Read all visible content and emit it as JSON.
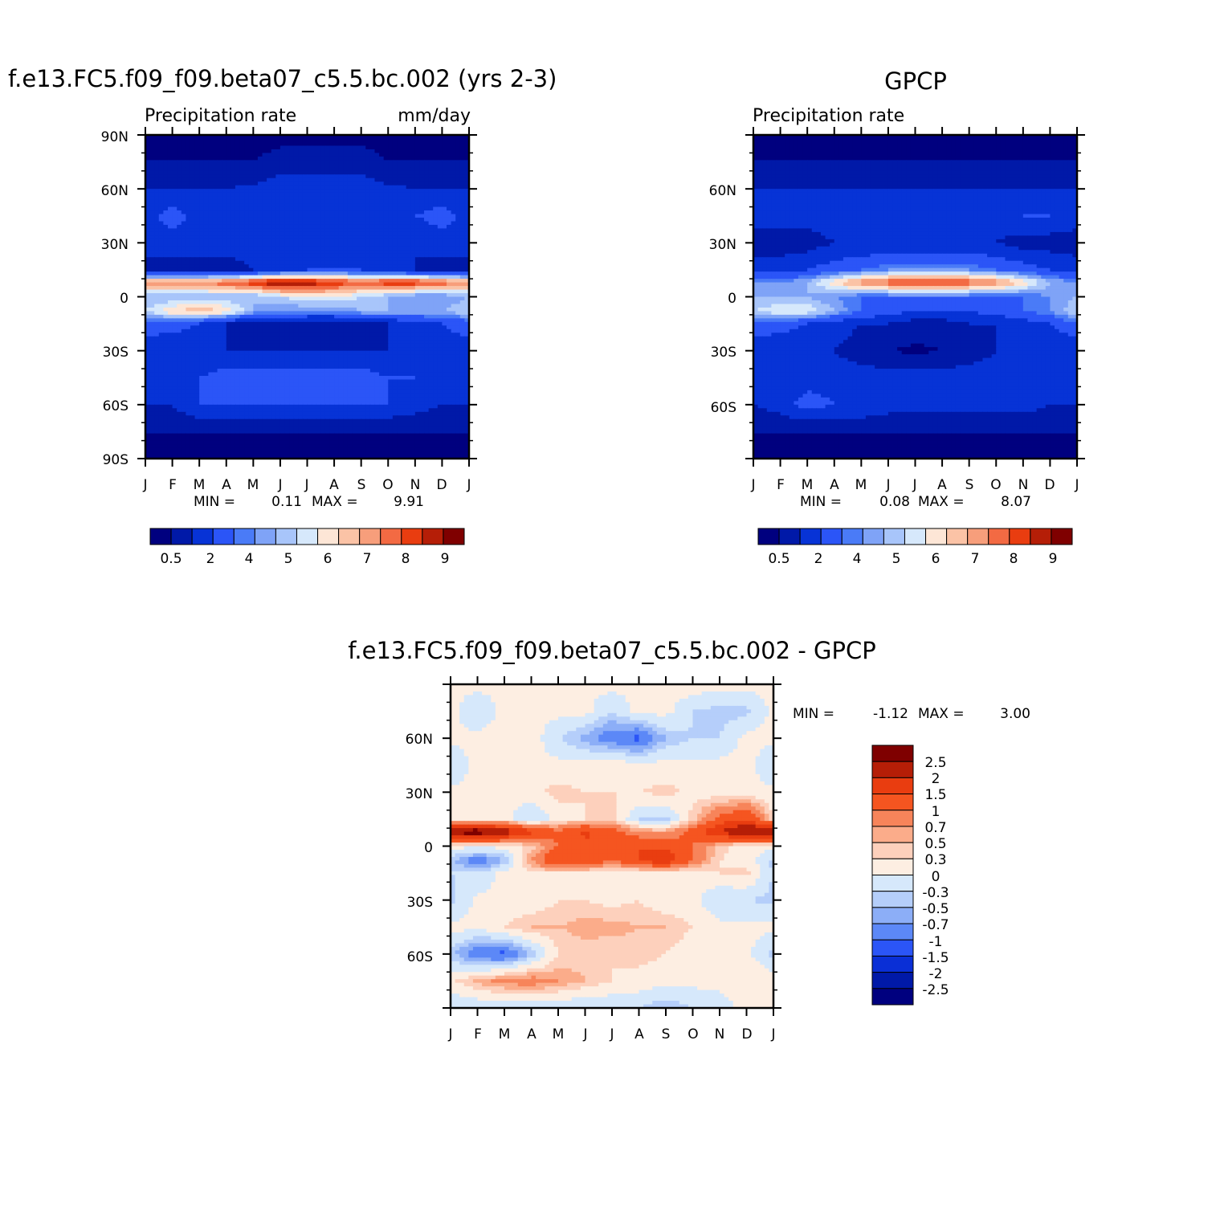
{
  "months": [
    "J",
    "F",
    "M",
    "A",
    "M",
    "J",
    "J",
    "A",
    "S",
    "O",
    "N",
    "D",
    "J"
  ],
  "panel_left": {
    "title": "f.e13.FC5.f09_f09.beta07_c5.5.bc.002 (yrs 2-3)",
    "left_string": "Precipitation rate",
    "right_string": "mm/day",
    "lat_labels": [
      "90N",
      "60N",
      "30N",
      "0",
      "30S",
      "60S",
      "90S"
    ],
    "min_label": "MIN =",
    "min_value": "0.11",
    "max_label": "MAX =",
    "max_value": "9.91",
    "colorbar_labels": [
      "0.5",
      "2",
      "4",
      "5",
      "6",
      "7",
      "8",
      "9"
    ]
  },
  "panel_right": {
    "title": "GPCP",
    "left_string": "Precipitation rate",
    "lat_labels": [
      "60N",
      "30N",
      "0",
      "30S",
      "60S"
    ],
    "min_label": "MIN =",
    "min_value": "0.08",
    "max_label": "MAX =",
    "max_value": "8.07",
    "colorbar_labels": [
      "0.5",
      "2",
      "4",
      "5",
      "6",
      "7",
      "8",
      "9"
    ]
  },
  "panel_diff": {
    "title": "f.e13.FC5.f09_f09.beta07_c5.5.bc.002 - GPCP",
    "lat_labels": [
      "60N",
      "30N",
      "0",
      "30S",
      "60S"
    ],
    "min_label": "MIN =",
    "min_value": "-1.12",
    "max_label": "MAX =",
    "max_value": "3.00",
    "colorbar_labels": [
      "2.5",
      "2",
      "1.5",
      "1",
      "0.7",
      "0.5",
      "0.3",
      "0",
      "-0.3",
      "-0.5",
      "-0.7",
      "-1",
      "-1.5",
      "-2",
      "-2.5"
    ]
  },
  "colors": {
    "precip_scale": [
      "#00007f",
      "#0019a8",
      "#0733d6",
      "#2b55f7",
      "#4a7bf7",
      "#7fa3f7",
      "#a8c5fa",
      "#d6e8fb",
      "#fde6d6",
      "#fbc3a6",
      "#f79e7b",
      "#f36a43",
      "#e93d10",
      "#b51e07",
      "#7f0000"
    ],
    "diff_scale": [
      "#7f0000",
      "#b51e07",
      "#e93d10",
      "#f55520",
      "#f7845a",
      "#fbac8a",
      "#fdd0bc",
      "#fdeee2",
      "#d6e8fb",
      "#b5cefa",
      "#8caef7",
      "#5c88f7",
      "#2b55f7",
      "#0a2fd6",
      "#0019a8",
      "#00007f"
    ]
  },
  "chart_data": [
    {
      "type": "heatmap",
      "title": "f.e13.FC5.f09_f09.beta07_c5.5.bc.002 (yrs 2-3)",
      "units": "mm/day",
      "x": [
        "J",
        "F",
        "M",
        "A",
        "M",
        "J",
        "J",
        "A",
        "S",
        "O",
        "N",
        "D",
        "J"
      ],
      "y": [
        90,
        75,
        60,
        45,
        30,
        15,
        8,
        0,
        -8,
        -15,
        -30,
        -45,
        -60,
        -75,
        -90
      ],
      "levels": [
        0.5,
        1,
        2,
        3,
        4,
        4.5,
        5,
        5.5,
        6,
        6.5,
        7,
        7.5,
        8,
        8.5,
        9,
        9.5
      ],
      "values": [
        [
          0.6,
          0.5,
          0.5,
          0.5,
          0.5,
          0.6,
          0.6,
          0.6,
          0.6,
          0.6,
          0.5,
          0.5,
          0.6
        ],
        [
          1.0,
          1.0,
          1.0,
          1.0,
          1.0,
          1.5,
          1.5,
          1.5,
          1.5,
          1.0,
          1.0,
          1.0,
          1.0
        ],
        [
          2.0,
          2.0,
          2.0,
          2.0,
          2.2,
          2.5,
          2.5,
          2.5,
          2.5,
          2.2,
          2.0,
          2.0,
          2.0
        ],
        [
          2.5,
          3.5,
          2.5,
          2.5,
          2.5,
          2.5,
          2.5,
          2.0,
          2.0,
          2.5,
          3.0,
          3.5,
          2.5
        ],
        [
          2.5,
          2.5,
          2.5,
          2.5,
          2.5,
          2.0,
          2.0,
          2.0,
          2.0,
          2.0,
          2.0,
          2.5,
          2.5
        ],
        [
          1.5,
          1.5,
          1.5,
          1.5,
          2.0,
          2.5,
          3.0,
          3.0,
          3.0,
          2.5,
          2.0,
          1.5,
          1.5
        ],
        [
          7.5,
          7.5,
          7.5,
          8.0,
          8.5,
          9.5,
          9.0,
          8.5,
          8.0,
          8.5,
          8.5,
          8.0,
          7.5
        ],
        [
          5.0,
          5.0,
          5.0,
          5.0,
          5.0,
          5.5,
          6.0,
          6.0,
          5.5,
          5.0,
          4.5,
          4.5,
          5.0
        ],
        [
          5.5,
          6.5,
          7.0,
          6.5,
          5.0,
          4.5,
          4.5,
          4.5,
          5.0,
          5.0,
          5.0,
          5.0,
          5.5
        ],
        [
          3.5,
          3.5,
          3.0,
          2.0,
          1.5,
          1.5,
          1.0,
          1.0,
          1.5,
          2.0,
          2.5,
          3.0,
          3.5
        ],
        [
          2.5,
          2.0,
          2.0,
          2.0,
          2.0,
          2.0,
          2.0,
          2.0,
          2.0,
          2.0,
          2.0,
          2.5,
          2.5
        ],
        [
          2.5,
          2.5,
          3.0,
          3.5,
          3.5,
          3.5,
          3.5,
          3.5,
          3.5,
          3.0,
          3.0,
          2.5,
          2.5
        ],
        [
          2.0,
          2.0,
          3.0,
          3.0,
          3.0,
          3.0,
          3.0,
          3.0,
          3.0,
          3.0,
          2.5,
          2.0,
          2.0
        ],
        [
          1.0,
          1.0,
          1.0,
          1.0,
          1.0,
          1.0,
          1.0,
          1.0,
          1.0,
          1.0,
          1.0,
          1.0,
          1.0
        ],
        [
          0.4,
          0.4,
          0.4,
          0.4,
          0.4,
          0.4,
          0.4,
          0.4,
          0.4,
          0.4,
          0.4,
          0.4,
          0.4
        ]
      ],
      "ylim": [
        -90,
        90
      ],
      "min": 0.11,
      "max": 9.91
    },
    {
      "type": "heatmap",
      "title": "GPCP",
      "x": [
        "J",
        "F",
        "M",
        "A",
        "M",
        "J",
        "J",
        "A",
        "S",
        "O",
        "N",
        "D",
        "J"
      ],
      "y": [
        90,
        75,
        60,
        45,
        30,
        15,
        8,
        0,
        -8,
        -15,
        -30,
        -45,
        -60,
        -75,
        -90
      ],
      "levels": [
        0.5,
        1,
        2,
        3,
        4,
        4.5,
        5,
        5.5,
        6,
        6.5,
        7,
        7.5,
        8,
        8.5,
        9,
        9.5
      ],
      "values": [
        [
          0.4,
          0.4,
          0.4,
          0.4,
          0.4,
          0.4,
          0.4,
          0.4,
          0.4,
          0.4,
          0.4,
          0.4,
          0.4
        ],
        [
          1.0,
          1.0,
          1.0,
          1.0,
          1.0,
          1.0,
          1.0,
          1.0,
          1.0,
          1.0,
          1.0,
          1.0,
          1.0
        ],
        [
          2.0,
          2.0,
          2.0,
          2.0,
          2.0,
          2.0,
          2.0,
          2.0,
          2.0,
          2.0,
          2.0,
          2.0,
          2.0
        ],
        [
          2.5,
          2.5,
          2.5,
          2.5,
          2.5,
          2.5,
          2.5,
          2.5,
          2.5,
          2.5,
          3.0,
          3.0,
          2.5
        ],
        [
          1.5,
          1.5,
          1.5,
          2.0,
          2.0,
          2.0,
          2.0,
          2.0,
          2.0,
          2.0,
          1.5,
          1.5,
          1.5
        ],
        [
          2.5,
          2.5,
          3.0,
          3.5,
          4.0,
          4.5,
          4.5,
          4.5,
          4.5,
          4.0,
          3.5,
          3.0,
          2.5
        ],
        [
          4.5,
          4.5,
          5.0,
          6.5,
          7.5,
          8.0,
          8.5,
          8.5,
          8.0,
          7.5,
          6.5,
          5.0,
          4.5
        ],
        [
          5.0,
          5.0,
          5.0,
          4.5,
          4.0,
          4.0,
          4.0,
          4.0,
          4.0,
          4.0,
          4.0,
          4.5,
          5.0
        ],
        [
          5.5,
          6.0,
          6.0,
          5.0,
          4.0,
          3.5,
          3.0,
          3.0,
          3.0,
          3.5,
          4.0,
          4.5,
          5.5
        ],
        [
          4.0,
          3.5,
          3.0,
          2.5,
          2.0,
          2.0,
          1.5,
          1.5,
          2.0,
          2.0,
          2.5,
          3.0,
          4.0
        ],
        [
          2.0,
          2.0,
          2.0,
          2.0,
          1.5,
          1.0,
          0.8,
          1.0,
          1.5,
          2.0,
          2.0,
          2.0,
          2.0
        ],
        [
          2.5,
          2.5,
          2.5,
          2.5,
          2.5,
          2.5,
          2.5,
          2.5,
          2.5,
          2.5,
          2.5,
          2.5,
          2.5
        ],
        [
          2.0,
          2.5,
          3.5,
          3.0,
          3.0,
          2.5,
          2.5,
          2.5,
          2.5,
          2.5,
          2.5,
          2.0,
          2.0
        ],
        [
          1.0,
          1.0,
          1.0,
          1.0,
          1.0,
          1.0,
          1.0,
          1.0,
          1.0,
          1.0,
          1.0,
          1.0,
          1.0
        ],
        [
          0.5,
          0.5,
          0.5,
          0.5,
          0.5,
          0.5,
          0.5,
          0.5,
          0.5,
          0.5,
          0.4,
          0.4,
          0.5
        ]
      ],
      "ylim": [
        -90,
        90
      ],
      "min": 0.08,
      "max": 8.07
    },
    {
      "type": "heatmap",
      "title": "f.e13.FC5.f09_f09.beta07_c5.5.bc.002 - GPCP",
      "x": [
        "J",
        "F",
        "M",
        "A",
        "M",
        "J",
        "J",
        "A",
        "S",
        "O",
        "N",
        "D",
        "J"
      ],
      "y": [
        90,
        75,
        60,
        45,
        30,
        15,
        8,
        0,
        -8,
        -15,
        -30,
        -45,
        -60,
        -75,
        -90
      ],
      "levels": [
        -2.5,
        -2,
        -1.5,
        -1,
        -0.7,
        -0.5,
        -0.3,
        0,
        0.3,
        0.5,
        0.7,
        1,
        1.5,
        2,
        2.5
      ],
      "values": [
        [
          0.1,
          0.1,
          0.1,
          0.2,
          0.2,
          0.1,
          0.1,
          0.1,
          0.1,
          0.2,
          0.1,
          0.1,
          0.1
        ],
        [
          0.1,
          -0.3,
          0.1,
          0.1,
          0.1,
          0.1,
          -0.3,
          0.1,
          0.1,
          -0.3,
          -0.4,
          -0.4,
          0.1
        ],
        [
          0.1,
          0.1,
          0.2,
          0.2,
          -0.3,
          -0.6,
          -0.9,
          -1.1,
          -0.5,
          -0.3,
          -0.3,
          0.1,
          0.1
        ],
        [
          -0.3,
          0.1,
          0.1,
          0.1,
          0.1,
          0.1,
          0.2,
          0.1,
          0.1,
          0.1,
          0.1,
          0.1,
          -0.3
        ],
        [
          0.1,
          0.1,
          0.1,
          0.2,
          0.4,
          0.3,
          0.3,
          0.3,
          0.4,
          0.2,
          0.1,
          0.1,
          0.1
        ],
        [
          0.2,
          0.2,
          0.1,
          -0.3,
          0.1,
          0.3,
          0.4,
          -0.3,
          -0.4,
          0.4,
          1.2,
          1.5,
          0.3
        ],
        [
          2.8,
          2.9,
          2.4,
          1.6,
          1.1,
          1.6,
          1.2,
          0.7,
          0.6,
          1.2,
          2.0,
          2.6,
          2.8
        ],
        [
          0.1,
          0.1,
          0.1,
          0.4,
          1.0,
          1.4,
          1.5,
          1.5,
          1.4,
          1.0,
          0.4,
          0.1,
          0.1
        ],
        [
          -0.4,
          -1.0,
          -0.5,
          0.7,
          1.5,
          1.4,
          1.0,
          1.5,
          1.9,
          1.0,
          0.3,
          0.2,
          -0.4
        ],
        [
          -0.3,
          -0.3,
          0.1,
          0.3,
          0.2,
          0.2,
          0.1,
          0.1,
          0.1,
          0.1,
          0.3,
          0.4,
          -0.3
        ],
        [
          -0.4,
          0.1,
          0.1,
          0.1,
          0.3,
          0.3,
          0.2,
          0.3,
          0.1,
          0.1,
          -0.3,
          -0.3,
          -0.4
        ],
        [
          0.1,
          0.1,
          0.3,
          0.5,
          0.5,
          0.6,
          0.6,
          0.5,
          0.5,
          0.3,
          0.1,
          0.1,
          0.1
        ],
        [
          -0.4,
          -1.0,
          -1.1,
          -0.5,
          0.3,
          0.4,
          0.3,
          0.4,
          0.3,
          0.1,
          0.1,
          0.1,
          -0.4
        ],
        [
          0.2,
          0.6,
          0.8,
          0.9,
          0.7,
          0.5,
          0.3,
          0.2,
          0.1,
          0.1,
          0.2,
          0.3,
          0.2
        ],
        [
          -0.3,
          -0.3,
          -0.3,
          -0.3,
          -0.3,
          -0.3,
          -0.3,
          -0.3,
          -0.5,
          -0.3,
          -0.3,
          0.2,
          0.2
        ]
      ],
      "ylim": [
        -90,
        90
      ],
      "min": -1.12,
      "max": 3.0
    }
  ]
}
